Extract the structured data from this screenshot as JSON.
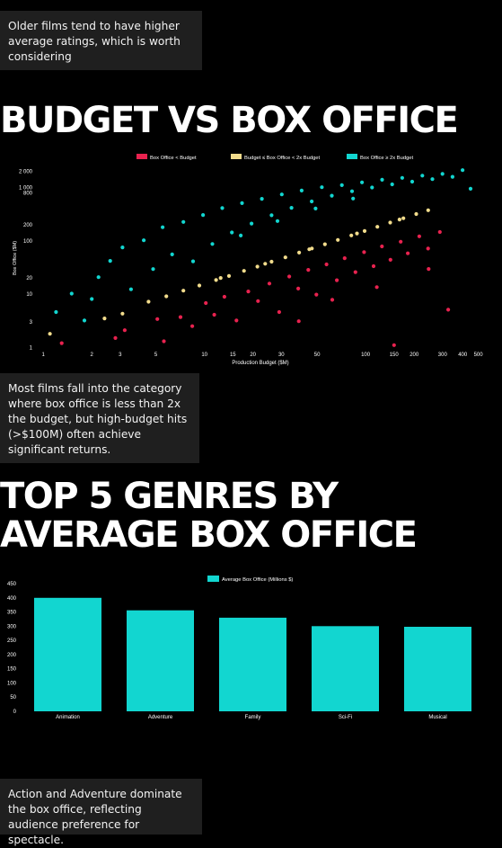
{
  "notes": {
    "note1": "Older films tend to have higher average ratings, which is worth considering",
    "note2": "Most films fall into the category where box office is less than 2x the budget, but high-budget hits (>$100M) often achieve significant returns.",
    "note3": "Action and Adventure dominate the box office, reflecting audience preference for spectacle."
  },
  "headings": {
    "budget": "BUDGET VS BOX OFFICE",
    "genres_line1": "TOP 5 GENRES BY",
    "genres_line2": "AVERAGE BOX OFFICE"
  },
  "chart_data": [
    {
      "type": "scatter",
      "xlabel": "Production Budget ($M)",
      "ylabel": "Box Office ($M)",
      "xscale": "log",
      "yscale": "log",
      "xlim": [
        0.9,
        550
      ],
      "ylim": [
        0.9,
        2500
      ],
      "x_ticks": [
        1,
        2,
        3,
        5,
        10,
        15,
        20,
        30,
        50,
        100,
        150,
        200,
        300,
        400,
        500
      ],
      "y_ticks": [
        1,
        3,
        10,
        20,
        100,
        200,
        800,
        1000,
        2000
      ],
      "x_tick_labels": [
        "1",
        "2",
        "3",
        "5",
        "10",
        "15",
        "20",
        "30",
        "50",
        "100",
        "150",
        "200",
        "300",
        "400",
        "500"
      ],
      "y_tick_labels": [
        "1",
        "3",
        "10",
        "20",
        "100",
        "200",
        "800",
        "1 000",
        "2 000"
      ],
      "legend_position": "top-center",
      "grid": false,
      "series": [
        {
          "name": "Box Office < Budget",
          "color": "#e8224f",
          "points": [
            [
              1.3,
              1.2
            ],
            [
              2.8,
              1.5
            ],
            [
              3.2,
              2.1
            ],
            [
              5.1,
              3.4
            ],
            [
              5.6,
              1.3
            ],
            [
              7.1,
              3.7
            ],
            [
              8.4,
              2.5
            ],
            [
              10.2,
              6.8
            ],
            [
              11.5,
              4.1
            ],
            [
              13.3,
              8.9
            ],
            [
              15.8,
              3.2
            ],
            [
              18.7,
              11.2
            ],
            [
              21.5,
              7.4
            ],
            [
              25.3,
              15.8
            ],
            [
              29.1,
              4.6
            ],
            [
              33.6,
              21.4
            ],
            [
              38.2,
              12.7
            ],
            [
              44.1,
              28.5
            ],
            [
              49.5,
              9.8
            ],
            [
              57.2,
              36.1
            ],
            [
              66.3,
              18.2
            ],
            [
              74.1,
              47.2
            ],
            [
              86.5,
              25.9
            ],
            [
              97.8,
              61.3
            ],
            [
              112.1,
              33.4
            ],
            [
              126.3,
              78.6
            ],
            [
              142.7,
              44.1
            ],
            [
              165.1,
              96.2
            ],
            [
              182.6,
              58.3
            ],
            [
              215.3,
              121.5
            ],
            [
              244.1,
              71.6
            ],
            [
              288.7,
              146.2
            ],
            [
              325.4,
              5.1
            ],
            [
              150.2,
              1.1
            ],
            [
              38.5,
              3.1
            ],
            [
              62.1,
              7.8
            ],
            [
              117.4,
              13.5
            ],
            [
              246.1,
              29.6
            ]
          ]
        },
        {
          "name": "Budget ≤ Box Office < 2x Budget",
          "color": "#f2dc8c",
          "points": [
            [
              1.1,
              1.8
            ],
            [
              2.4,
              3.5
            ],
            [
              3.1,
              4.3
            ],
            [
              4.5,
              7.2
            ],
            [
              5.8,
              9.1
            ],
            [
              7.4,
              11.6
            ],
            [
              9.3,
              14.5
            ],
            [
              11.8,
              18.4
            ],
            [
              14.2,
              21.9
            ],
            [
              17.6,
              27.3
            ],
            [
              21.3,
              32.8
            ],
            [
              26.1,
              40.6
            ],
            [
              31.8,
              48.9
            ],
            [
              38.7,
              60.2
            ],
            [
              46.4,
              71.8
            ],
            [
              55.9,
              86.3
            ],
            [
              67.2,
              104.1
            ],
            [
              81.5,
              126.5
            ],
            [
              98.6,
              152.8
            ],
            [
              118.3,
              183.2
            ],
            [
              142.1,
              220.4
            ],
            [
              171.5,
              265.3
            ],
            [
              206.2,
              318.1
            ],
            [
              244.3,
              375.2
            ],
            [
              12.6,
              20.1
            ],
            [
              23.8,
              37.2
            ],
            [
              44.7,
              69.5
            ],
            [
              88.4,
              137.6
            ],
            [
              162.3,
              251.8
            ]
          ]
        },
        {
          "name": "Box Office ≥ 2x Budget",
          "color": "#12d6d0",
          "points": [
            [
              1.2,
              4.6
            ],
            [
              1.5,
              10.2
            ],
            [
              1.8,
              3.2
            ],
            [
              2.2,
              20.8
            ],
            [
              2.6,
              42.1
            ],
            [
              3.1,
              75.4
            ],
            [
              3.5,
              12.3
            ],
            [
              4.2,
              102.6
            ],
            [
              4.8,
              29.5
            ],
            [
              5.5,
              180.1
            ],
            [
              6.3,
              55.7
            ],
            [
              7.4,
              226.3
            ],
            [
              8.5,
              41.2
            ],
            [
              9.8,
              305.8
            ],
            [
              11.2,
              87.4
            ],
            [
              12.9,
              412.3
            ],
            [
              14.8,
              143.8
            ],
            [
              17.1,
              510.6
            ],
            [
              19.6,
              211.1
            ],
            [
              22.7,
              615.4
            ],
            [
              26.1,
              302.2
            ],
            [
              30.2,
              743.6
            ],
            [
              34.7,
              416.5
            ],
            [
              40.1,
              880.4
            ],
            [
              46.3,
              549.8
            ],
            [
              53.5,
              1012.7
            ],
            [
              61.7,
              705.1
            ],
            [
              71.2,
              1108.5
            ],
            [
              82.3,
              853.2
            ],
            [
              94.9,
              1250.4
            ],
            [
              109.6,
              1004.1
            ],
            [
              126.5,
              1398.7
            ],
            [
              146.1,
              1150.2
            ],
            [
              168.7,
              1520.9
            ],
            [
              194.6,
              1290.6
            ],
            [
              224.8,
              1674.3
            ],
            [
              259.5,
              1438.8
            ],
            [
              299.8,
              1802.5
            ],
            [
              345.9,
              1590.1
            ],
            [
              399.5,
              2120.6
            ],
            [
              448.1,
              950.2
            ],
            [
              16.8,
              125.7
            ],
            [
              28.4,
              235.6
            ],
            [
              48.9,
              403.2
            ],
            [
              83.6,
              621.5
            ],
            [
              2.0,
              8.1
            ]
          ]
        }
      ]
    },
    {
      "type": "bar",
      "categories": [
        "Animation",
        "Adventure",
        "Family",
        "Sci-Fi",
        "Musical"
      ],
      "series": [
        {
          "name": "Average Box Office (Millions $)",
          "values": [
            400,
            356,
            330,
            300,
            298
          ]
        }
      ],
      "ylim": [
        0,
        450
      ],
      "y_ticks": [
        0,
        50,
        100,
        150,
        200,
        250,
        300,
        350,
        400,
        450
      ],
      "color": "#12d6d0",
      "legend_position": "top-center",
      "grid": false
    }
  ]
}
